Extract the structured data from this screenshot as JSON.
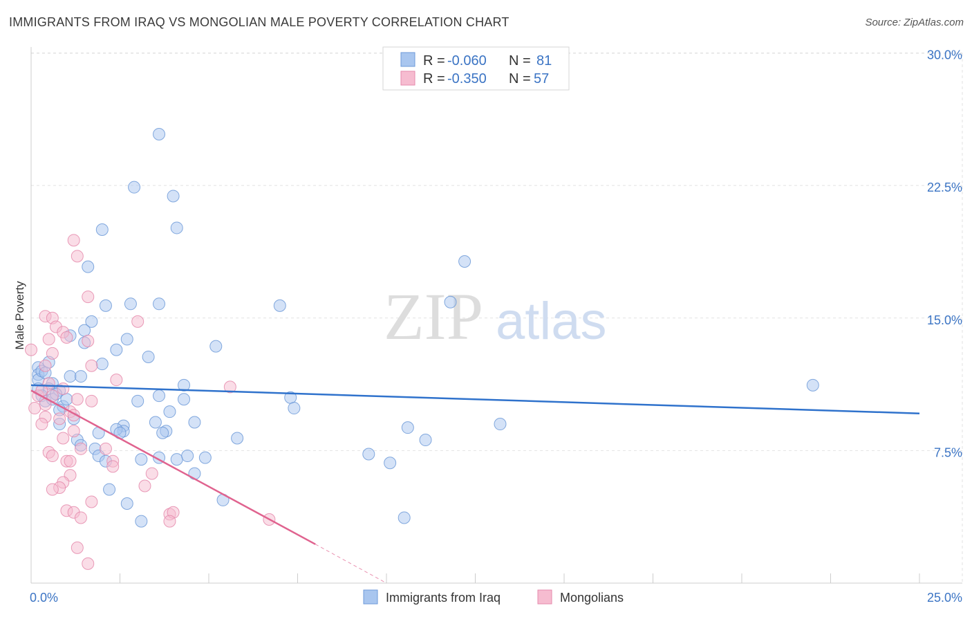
{
  "title": "IMMIGRANTS FROM IRAQ VS MONGOLIAN MALE POVERTY CORRELATION CHART",
  "source": "Source: ZipAtlas.com",
  "colors": {
    "iraq_fill": "#a9c6ef",
    "iraq_stroke": "#6d9ad8",
    "iraq_line": "#2f72cc",
    "mong_fill": "#f6bcd0",
    "mong_stroke": "#e58aac",
    "mong_line": "#e0638f",
    "tick": "#3b74c4"
  },
  "legend": {
    "row1": {
      "r_label": "R = ",
      "r_value": "-0.060",
      "n_label": "N = ",
      "n_value": "81"
    },
    "row2": {
      "r_label": "R = ",
      "r_value": "-0.350",
      "n_label": "N = ",
      "n_value": "57"
    }
  },
  "watermark": {
    "zip": "ZIP",
    "atlas": "atlas"
  },
  "chart_data": {
    "type": "scatter",
    "title": "IMMIGRANTS FROM IRAQ VS MONGOLIAN MALE POVERTY CORRELATION CHART",
    "xlabel": "",
    "ylabel": "Male Poverty",
    "xlim": [
      0,
      25
    ],
    "ylim": [
      0,
      31.5
    ],
    "x_tick_labels": [
      "0.0%",
      "25.0%"
    ],
    "y_ticks": [
      7.5,
      15.0,
      22.5,
      30.0
    ],
    "y_tick_labels": [
      "7.5%",
      "15.0%",
      "22.5%",
      "30.0%"
    ],
    "series": [
      {
        "name": "Immigrants from Iraq",
        "r": -0.06,
        "n": 81,
        "trend": {
          "x0": 0,
          "y0": 11.2,
          "x1": 25,
          "y1": 9.6
        },
        "points": [
          [
            3.6,
            25.4
          ],
          [
            2.9,
            22.4
          ],
          [
            4.0,
            21.9
          ],
          [
            2.0,
            20.0
          ],
          [
            4.1,
            20.1
          ],
          [
            12.2,
            18.2
          ],
          [
            1.6,
            17.9
          ],
          [
            2.1,
            15.7
          ],
          [
            2.8,
            15.8
          ],
          [
            3.6,
            15.8
          ],
          [
            7.0,
            15.7
          ],
          [
            11.8,
            15.9
          ],
          [
            1.7,
            14.8
          ],
          [
            1.5,
            14.3
          ],
          [
            1.1,
            14.0
          ],
          [
            2.7,
            13.8
          ],
          [
            1.5,
            13.6
          ],
          [
            2.4,
            13.2
          ],
          [
            5.2,
            13.4
          ],
          [
            3.3,
            12.8
          ],
          [
            0.5,
            12.5
          ],
          [
            0.2,
            12.2
          ],
          [
            2.0,
            12.4
          ],
          [
            0.2,
            11.8
          ],
          [
            0.2,
            11.5
          ],
          [
            1.1,
            11.7
          ],
          [
            1.4,
            11.7
          ],
          [
            0.6,
            11.3
          ],
          [
            4.3,
            11.2
          ],
          [
            0.5,
            11.0
          ],
          [
            0.2,
            11.0
          ],
          [
            0.8,
            10.9
          ],
          [
            0.3,
            10.6
          ],
          [
            0.4,
            10.3
          ],
          [
            0.6,
            10.4
          ],
          [
            3.6,
            10.6
          ],
          [
            4.3,
            10.4
          ],
          [
            7.3,
            10.5
          ],
          [
            3.0,
            10.3
          ],
          [
            0.9,
            10.0
          ],
          [
            0.8,
            9.8
          ],
          [
            1.0,
            10.4
          ],
          [
            7.4,
            9.9
          ],
          [
            3.9,
            9.7
          ],
          [
            1.2,
            9.3
          ],
          [
            2.6,
            8.9
          ],
          [
            3.5,
            9.1
          ],
          [
            4.6,
            9.1
          ],
          [
            2.6,
            8.6
          ],
          [
            2.4,
            8.7
          ],
          [
            3.8,
            8.6
          ],
          [
            2.5,
            8.5
          ],
          [
            3.7,
            8.5
          ],
          [
            1.9,
            8.5
          ],
          [
            0.8,
            9.0
          ],
          [
            10.6,
            8.8
          ],
          [
            13.2,
            9.0
          ],
          [
            11.1,
            8.1
          ],
          [
            5.8,
            8.2
          ],
          [
            1.3,
            8.1
          ],
          [
            1.4,
            7.8
          ],
          [
            1.8,
            7.6
          ],
          [
            1.9,
            7.2
          ],
          [
            3.1,
            7.0
          ],
          [
            3.6,
            7.1
          ],
          [
            4.1,
            7.0
          ],
          [
            4.4,
            7.2
          ],
          [
            4.9,
            7.1
          ],
          [
            2.1,
            6.9
          ],
          [
            9.5,
            7.3
          ],
          [
            10.1,
            6.8
          ],
          [
            4.6,
            6.2
          ],
          [
            2.2,
            5.3
          ],
          [
            2.7,
            4.5
          ],
          [
            3.1,
            3.5
          ],
          [
            5.4,
            4.7
          ],
          [
            10.5,
            3.7
          ],
          [
            22.0,
            11.2
          ],
          [
            0.3,
            12.0
          ],
          [
            0.4,
            11.9
          ],
          [
            0.7,
            10.7
          ]
        ]
      },
      {
        "name": "Mongolians",
        "r": -0.35,
        "n": 57,
        "trend": {
          "x0": 0,
          "y0": 10.9,
          "x1": 8.0,
          "y1": 2.2,
          "dash_x1": 10.0,
          "dash_y1": 0.0
        },
        "points": [
          [
            1.2,
            19.4
          ],
          [
            1.3,
            18.5
          ],
          [
            1.6,
            16.2
          ],
          [
            0.4,
            15.1
          ],
          [
            0.6,
            15.0
          ],
          [
            3.0,
            14.8
          ],
          [
            0.7,
            14.5
          ],
          [
            0.9,
            14.2
          ],
          [
            1.0,
            13.9
          ],
          [
            0.5,
            13.8
          ],
          [
            1.6,
            13.7
          ],
          [
            0.0,
            13.2
          ],
          [
            0.6,
            13.0
          ],
          [
            0.4,
            12.3
          ],
          [
            1.7,
            12.3
          ],
          [
            2.4,
            11.5
          ],
          [
            5.6,
            11.1
          ],
          [
            0.5,
            11.3
          ],
          [
            0.9,
            11.0
          ],
          [
            0.2,
            10.6
          ],
          [
            0.3,
            10.9
          ],
          [
            0.6,
            10.6
          ],
          [
            1.3,
            10.4
          ],
          [
            1.7,
            10.3
          ],
          [
            0.4,
            10.1
          ],
          [
            0.1,
            9.9
          ],
          [
            1.1,
            9.7
          ],
          [
            1.2,
            9.5
          ],
          [
            0.4,
            9.4
          ],
          [
            0.8,
            9.3
          ],
          [
            0.3,
            9.0
          ],
          [
            1.2,
            8.6
          ],
          [
            0.9,
            8.2
          ],
          [
            1.4,
            7.6
          ],
          [
            2.1,
            7.6
          ],
          [
            0.5,
            7.4
          ],
          [
            0.6,
            7.2
          ],
          [
            1.0,
            6.9
          ],
          [
            2.3,
            6.9
          ],
          [
            1.1,
            6.9
          ],
          [
            2.3,
            6.6
          ],
          [
            3.4,
            6.2
          ],
          [
            1.1,
            6.1
          ],
          [
            0.9,
            5.7
          ],
          [
            0.8,
            5.4
          ],
          [
            0.6,
            5.3
          ],
          [
            3.2,
            5.5
          ],
          [
            1.7,
            4.6
          ],
          [
            1.0,
            4.1
          ],
          [
            1.2,
            4.0
          ],
          [
            1.4,
            3.7
          ],
          [
            3.9,
            3.9
          ],
          [
            4.0,
            4.0
          ],
          [
            3.9,
            3.5
          ],
          [
            6.7,
            3.6
          ],
          [
            1.3,
            2.0
          ],
          [
            1.6,
            1.1
          ]
        ]
      }
    ]
  }
}
